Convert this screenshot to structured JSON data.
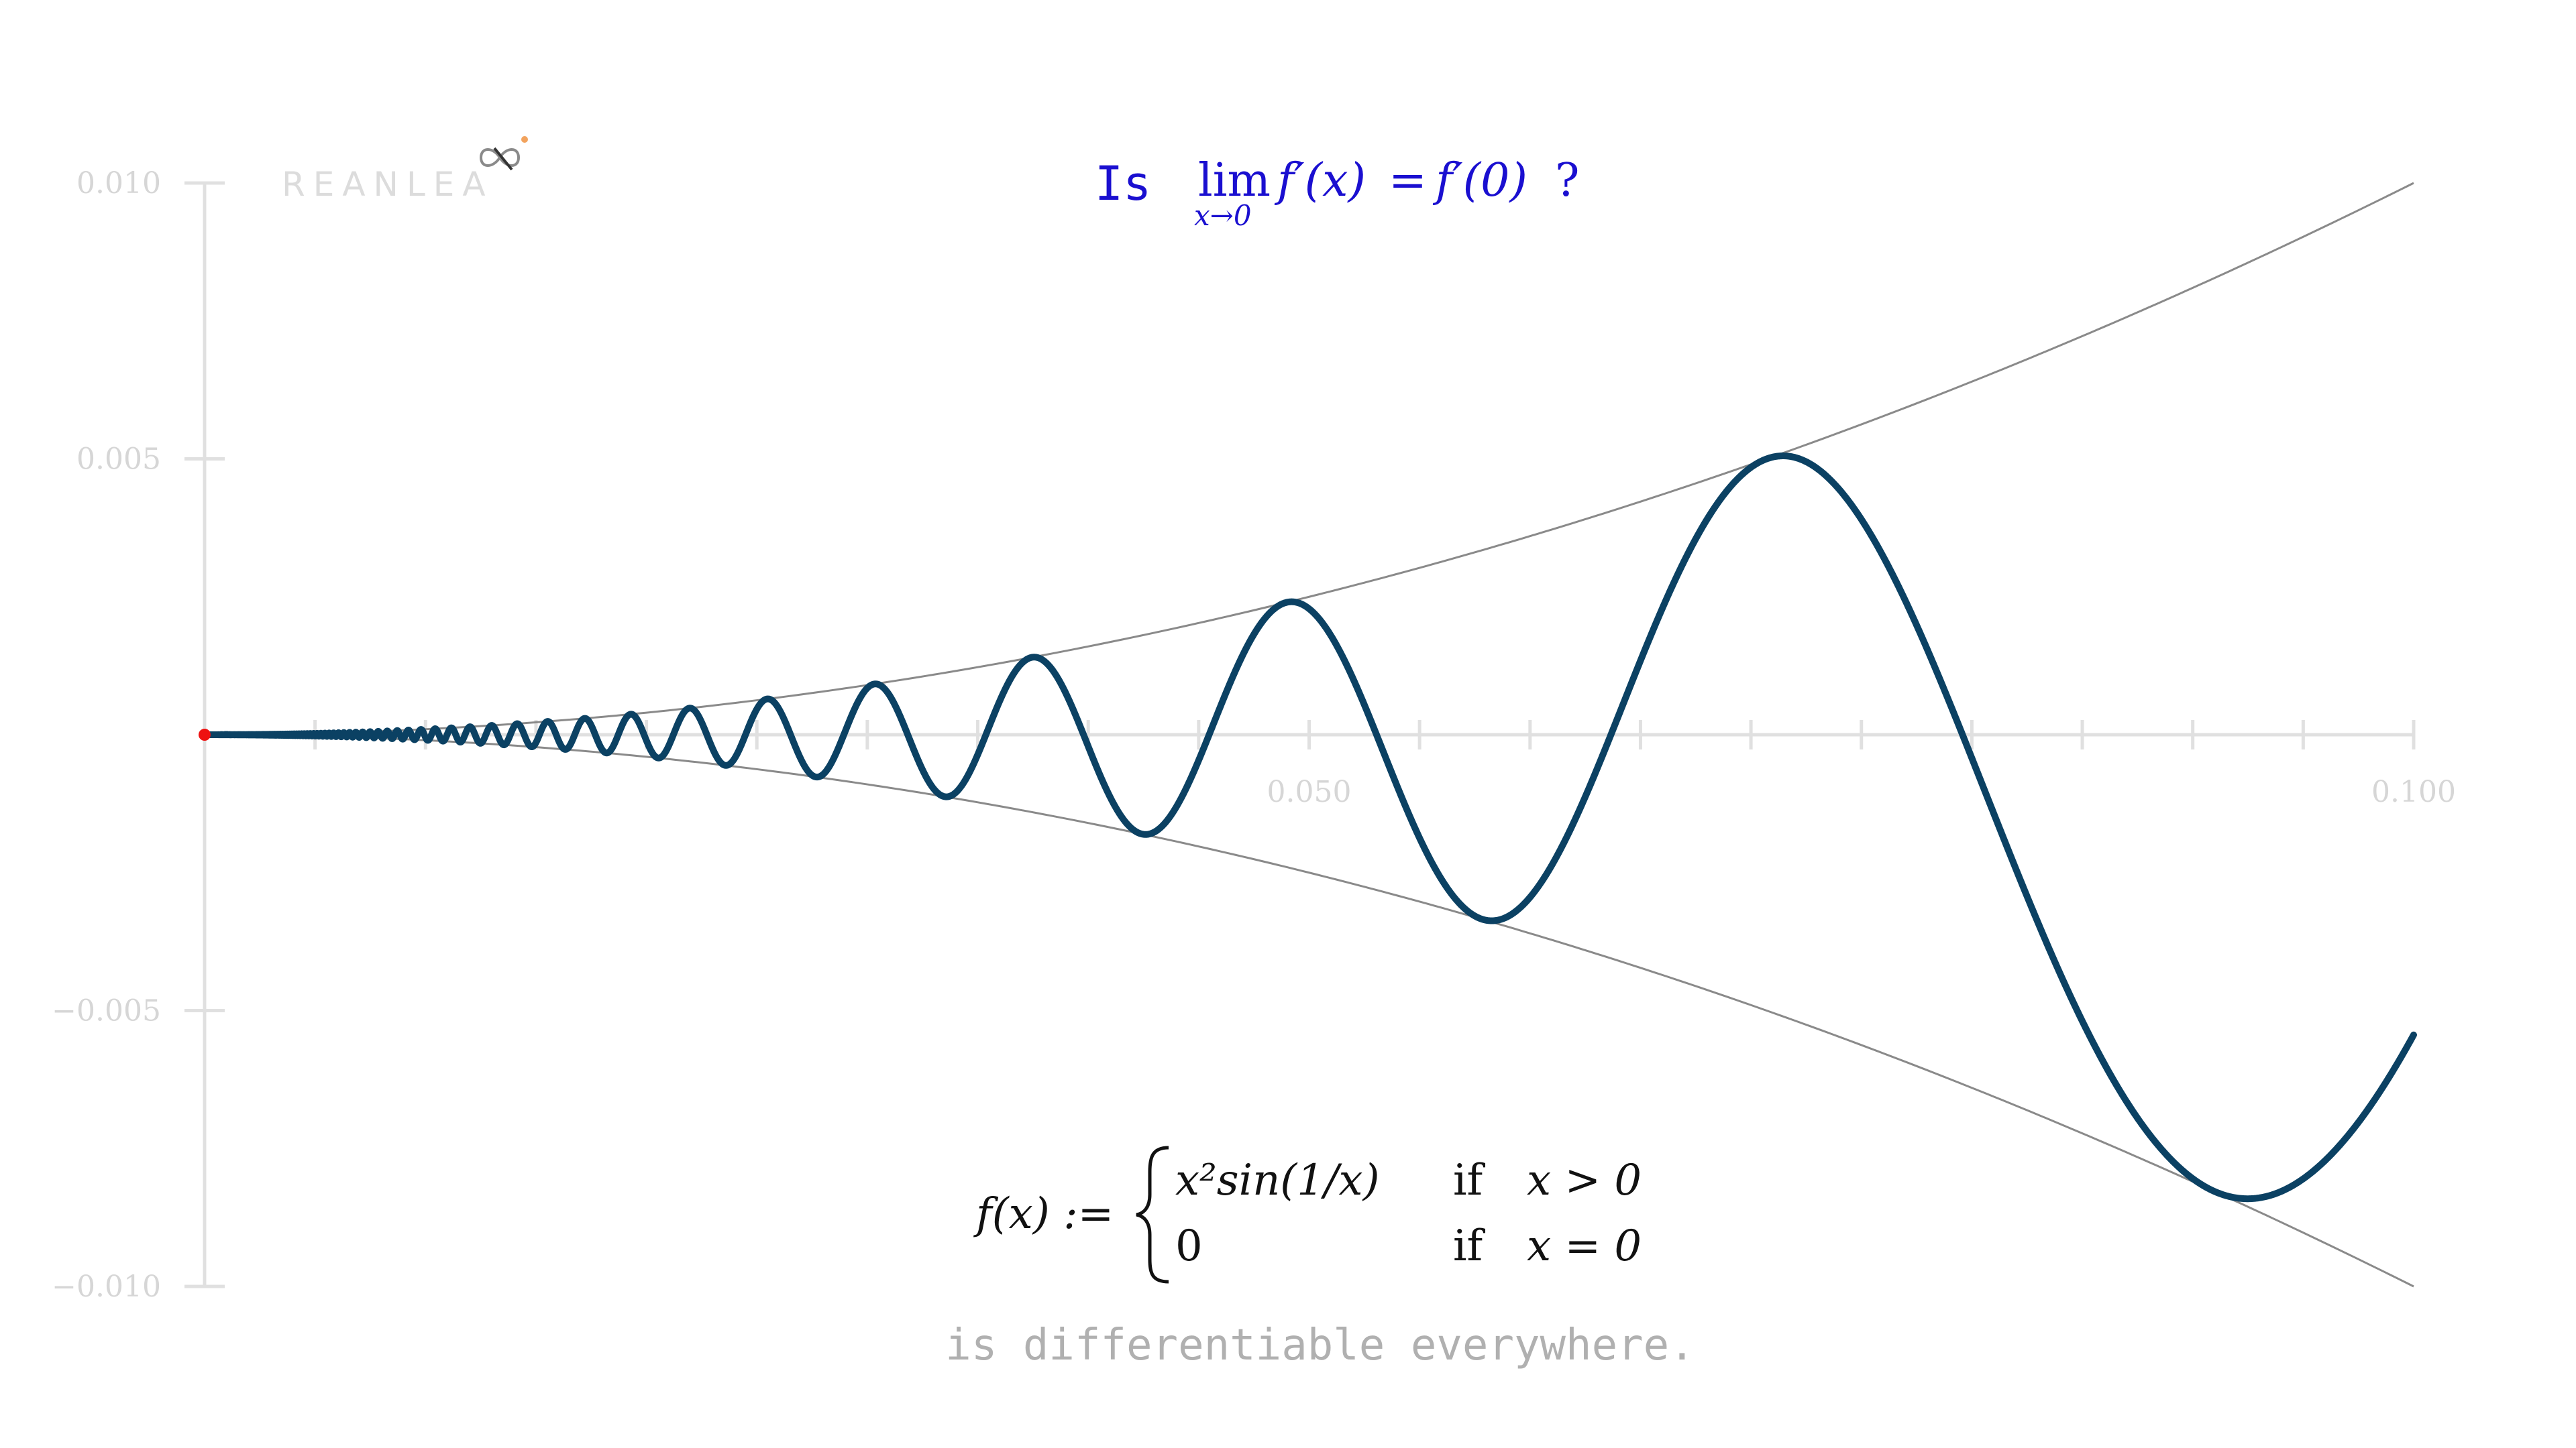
{
  "chart_data": {
    "type": "line",
    "title": "",
    "xlabel": "",
    "ylabel": "",
    "xlim": [
      0,
      0.1
    ],
    "ylim": [
      -0.01,
      0.01
    ],
    "x_ticks": [
      0,
      0.005,
      0.01,
      0.015,
      0.02,
      0.025,
      0.03,
      0.035,
      0.04,
      0.045,
      0.05,
      0.055,
      0.06,
      0.065,
      0.07,
      0.075,
      0.08,
      0.085,
      0.09,
      0.095,
      0.1
    ],
    "x_tick_labels": [
      {
        "value": 0.05,
        "label": "0.050"
      },
      {
        "value": 0.1,
        "label": "0.100"
      }
    ],
    "y_ticks": [
      {
        "value": 0.01,
        "label": "0.010"
      },
      {
        "value": 0.005,
        "label": "0.005"
      },
      {
        "value": -0.005,
        "label": "−0.005"
      },
      {
        "value": -0.01,
        "label": "−0.010"
      }
    ],
    "grid": false,
    "series": [
      {
        "role": "curve",
        "expression": "x^2*sin(1/x)",
        "domain": [
          0.0006,
          0.1
        ],
        "color": "#0b4163"
      },
      {
        "role": "upper-envelope",
        "expression": "x^2",
        "domain": [
          0,
          0.1
        ],
        "color": "#8a8a8a"
      },
      {
        "role": "lower-envelope",
        "expression": "-x^2",
        "domain": [
          0,
          0.1
        ],
        "color": "#8a8a8a"
      }
    ],
    "highlight_point": {
      "x": 0,
      "y": 0,
      "color": "#ee1111"
    }
  },
  "brand": {
    "text": "REANLEA"
  },
  "question": {
    "prefix": "Is",
    "lim": "lim",
    "lim_sub": "x→0",
    "lhs": "f′(x)",
    "eq": "=",
    "rhs": "f′(0)",
    "qmark": "?"
  },
  "definition": {
    "lhs": "f(x) :=",
    "case1_expr": "x²sin(1/x)",
    "case1_if": "if",
    "case1_cond": "x > 0",
    "case2_expr": "0",
    "case2_if": "if",
    "case2_cond": "x = 0"
  },
  "caption": "is differentiable everywhere.",
  "colors": {
    "curve": "#0b4163",
    "envelope": "#8a8a8a",
    "axis": "#e0e0e0",
    "title": "#1a0fd0",
    "point": "#ee1111"
  }
}
